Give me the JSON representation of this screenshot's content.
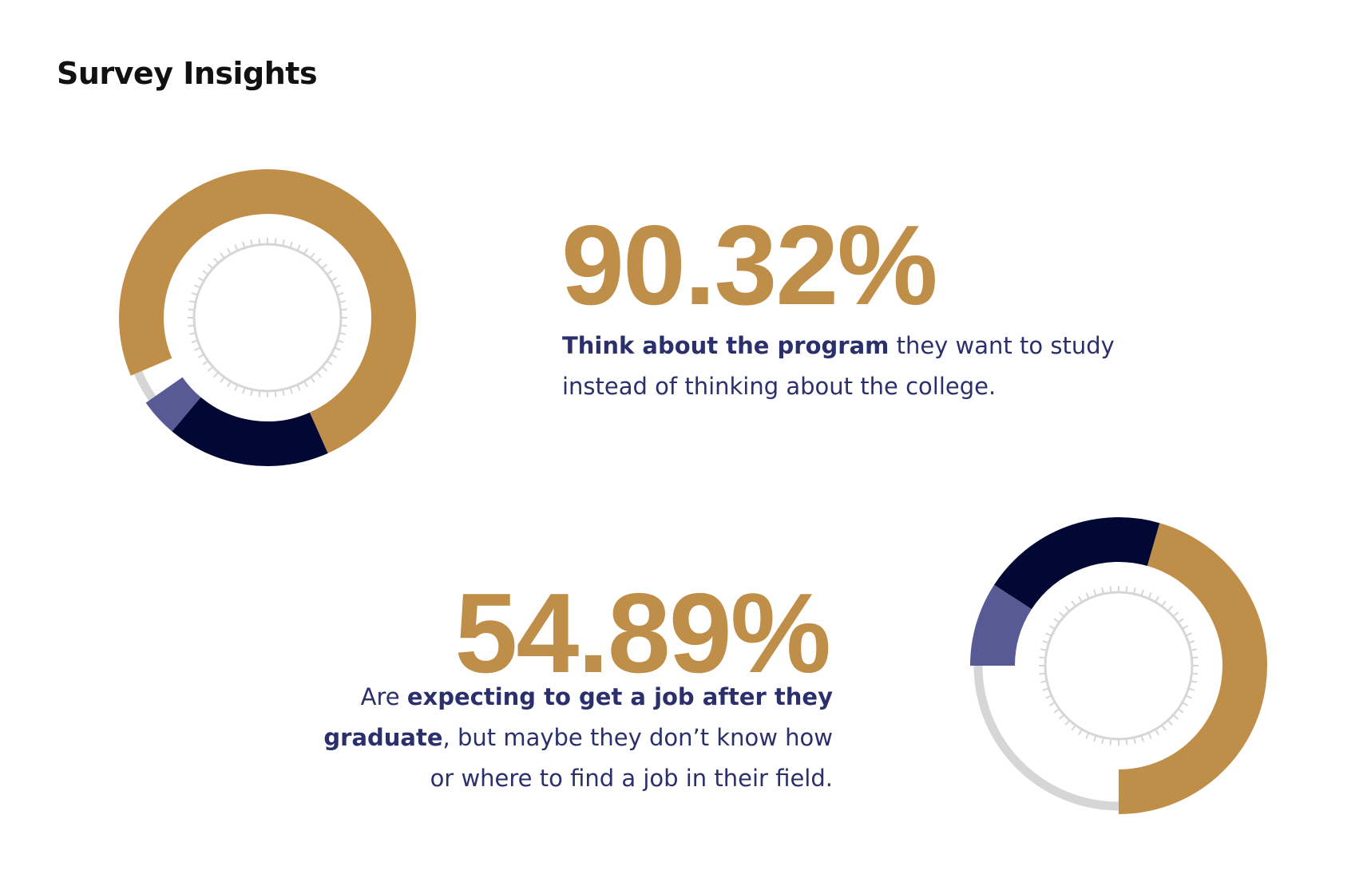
{
  "title": "Survey Insights",
  "insights": [
    {
      "stat": "90.32%",
      "text": [
        "Think about the program",
        " they want to study instead of thinking about the college."
      ]
    },
    {
      "stat": "54.89%",
      "text": [
        "Are ",
        "expecting to get a job after they graduate",
        ", but maybe they don’t know how or where to find a job in their field."
      ]
    }
  ]
}
